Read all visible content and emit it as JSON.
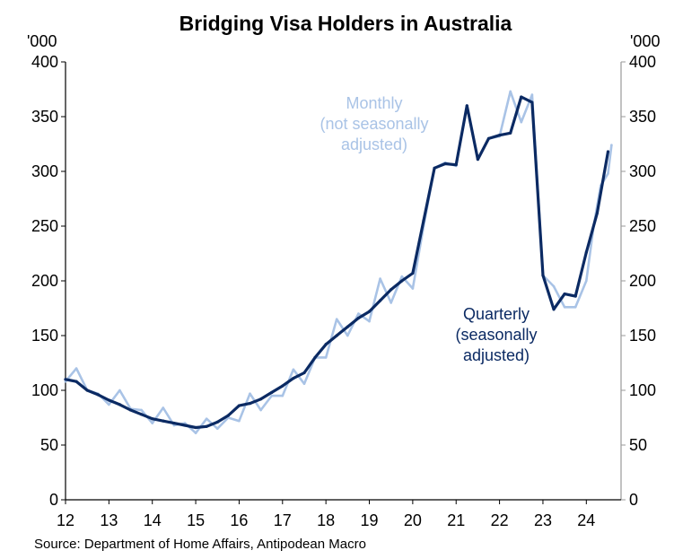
{
  "chart_data": {
    "type": "line",
    "title": "Bridging Visa Holders in Australia",
    "ylabel_left": "'000",
    "ylabel_right": "'000",
    "ylim": [
      0,
      400
    ],
    "yticks": [
      0,
      50,
      100,
      150,
      200,
      250,
      300,
      350,
      400
    ],
    "xlim": [
      12,
      24.8
    ],
    "xticks": [
      "12",
      "13",
      "14",
      "15",
      "16",
      "17",
      "18",
      "19",
      "20",
      "21",
      "22",
      "23",
      "24"
    ],
    "grid": false,
    "source": "Source: Department of Home Affairs, Antipodean Macro",
    "colors": {
      "monthly": "#a9c3e6",
      "quarterly": "#0b2a63",
      "axis": "#000000",
      "right_axis": "#9a9a9a"
    },
    "annotations": [
      {
        "series": "monthly",
        "lines": [
          "Monthly",
          "(not seasonally",
          "adjusted)"
        ]
      },
      {
        "series": "quarterly",
        "lines": [
          "Quarterly",
          "(seasonally",
          "adjusted)"
        ]
      }
    ],
    "series": [
      {
        "id": "monthly",
        "name": "Monthly (not seasonally adjusted)",
        "x": [
          12.0,
          12.25,
          12.5,
          12.75,
          13.0,
          13.25,
          13.5,
          13.75,
          14.0,
          14.25,
          14.5,
          14.75,
          15.0,
          15.25,
          15.5,
          15.75,
          16.0,
          16.25,
          16.5,
          16.75,
          17.0,
          17.25,
          17.5,
          17.75,
          18.0,
          18.25,
          18.5,
          18.75,
          19.0,
          19.25,
          19.5,
          19.75,
          20.0,
          20.25,
          20.5,
          20.75,
          21.0,
          21.25,
          21.5,
          21.75,
          22.0,
          22.25,
          22.5,
          22.75,
          23.0,
          23.25,
          23.5,
          23.75,
          24.0,
          24.17,
          24.33,
          24.5,
          24.58
        ],
        "values": [
          108,
          120,
          100,
          97,
          87,
          100,
          83,
          82,
          70,
          84,
          68,
          70,
          61,
          74,
          65,
          75,
          72,
          97,
          82,
          95,
          95,
          119,
          106,
          130,
          130,
          165,
          150,
          170,
          163,
          202,
          180,
          204,
          193,
          250,
          303,
          308,
          305,
          360,
          311,
          330,
          332,
          373,
          345,
          370,
          205,
          195,
          176,
          176,
          200,
          250,
          287,
          298,
          324
        ]
      },
      {
        "id": "quarterly",
        "name": "Quarterly (seasonally adjusted)",
        "x": [
          12.0,
          12.25,
          12.5,
          12.75,
          13.0,
          13.25,
          13.5,
          13.75,
          14.0,
          14.25,
          14.5,
          14.75,
          15.0,
          15.25,
          15.5,
          15.75,
          16.0,
          16.25,
          16.5,
          16.75,
          17.0,
          17.25,
          17.5,
          17.75,
          18.0,
          18.25,
          18.5,
          18.75,
          19.0,
          19.25,
          19.5,
          19.75,
          20.0,
          20.25,
          20.5,
          20.75,
          21.0,
          21.25,
          21.5,
          21.75,
          22.0,
          22.25,
          22.5,
          22.75,
          23.0,
          23.25,
          23.5,
          23.75,
          24.0,
          24.25,
          24.5
        ],
        "values": [
          110,
          108,
          100,
          96,
          91,
          87,
          82,
          78,
          74,
          72,
          70,
          68,
          66,
          67,
          71,
          77,
          86,
          88,
          92,
          98,
          104,
          111,
          116,
          130,
          142,
          150,
          158,
          166,
          172,
          182,
          192,
          200,
          207,
          255,
          303,
          307,
          306,
          360,
          311,
          330,
          333,
          335,
          368,
          363,
          205,
          174,
          188,
          186,
          226,
          262,
          318
        ]
      }
    ]
  }
}
